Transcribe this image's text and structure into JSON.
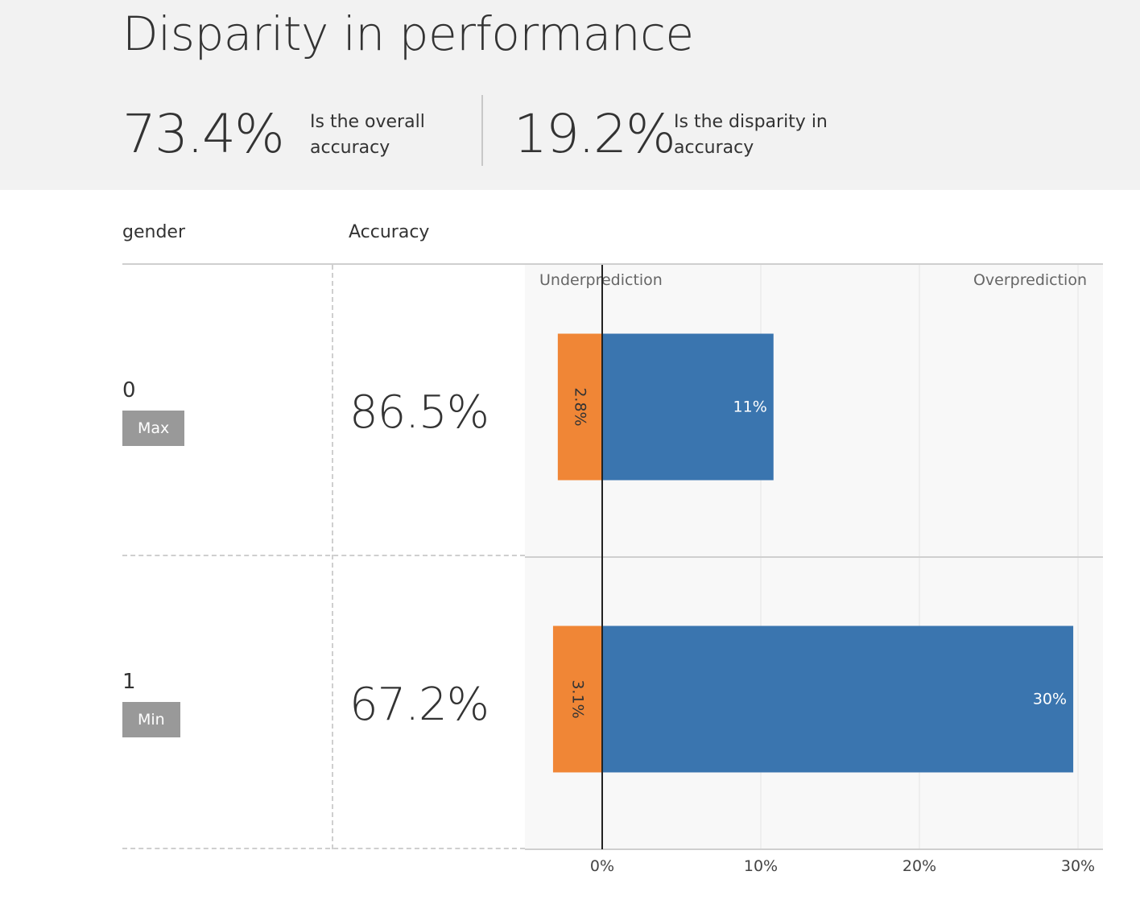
{
  "header": {
    "title": "Disparity in performance",
    "overall_accuracy": {
      "value": "73.4%",
      "description": "Is the overall accuracy"
    },
    "disparity": {
      "value": "19.2%",
      "description": "Is the disparity in accuracy"
    }
  },
  "table": {
    "group_column": "gender",
    "metric_column": "Accuracy",
    "rows": [
      {
        "group": "0",
        "badge": "Max",
        "accuracy": "86.5%"
      },
      {
        "group": "1",
        "badge": "Min",
        "accuracy": "67.2%"
      }
    ]
  },
  "colors": {
    "underprediction": "#F08636",
    "overprediction": "#3A75AF"
  },
  "chart_data": {
    "type": "bar",
    "orientation": "horizontal",
    "stacked": true,
    "categories": [
      "0",
      "1"
    ],
    "series": [
      {
        "name": "Underprediction",
        "values": [
          -2.8,
          -3.1
        ],
        "labels": [
          "2.8%",
          "3.1%"
        ]
      },
      {
        "name": "Overprediction",
        "values": [
          10.8,
          29.7
        ],
        "labels": [
          "11%",
          "30%"
        ]
      }
    ],
    "annotations": {
      "left": "Underprediction",
      "right": "Overprediction"
    },
    "xlim": [
      -5,
      31.5
    ],
    "xticks": [
      0,
      10,
      20,
      30
    ],
    "xtick_labels": [
      "0%",
      "10%",
      "20%",
      "30%"
    ],
    "grid": true
  }
}
